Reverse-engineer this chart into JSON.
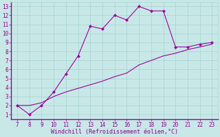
{
  "x": [
    7,
    8,
    9,
    10,
    11,
    12,
    13,
    14,
    15,
    16,
    17,
    18,
    19,
    20,
    21,
    22,
    23
  ],
  "y_main": [
    2,
    1,
    2,
    3.5,
    5.5,
    7.5,
    10.8,
    10.5,
    12,
    11.5,
    13,
    12.5,
    12.5,
    8.5,
    8.5,
    8.8,
    9
  ],
  "y_line": [
    2,
    2.0,
    2.3,
    3.0,
    3.5,
    3.9,
    4.3,
    4.7,
    5.2,
    5.6,
    6.5,
    7.0,
    7.5,
    7.8,
    8.2,
    8.5,
    8.8
  ],
  "xlabel": "Windchill (Refroidissement éolien,°C)",
  "xlim": [
    6.5,
    23.5
  ],
  "ylim": [
    0.5,
    13.5
  ],
  "xticks": [
    7,
    8,
    9,
    10,
    11,
    12,
    13,
    14,
    15,
    16,
    17,
    18,
    19,
    20,
    21,
    22,
    23
  ],
  "yticks": [
    1,
    2,
    3,
    4,
    5,
    6,
    7,
    8,
    9,
    10,
    11,
    12,
    13
  ],
  "line_color": "#990099",
  "bg_color": "#c8e8e8",
  "grid_color": "#aad4d4",
  "tick_color": "#880088",
  "label_color": "#880088",
  "font": "monospace"
}
